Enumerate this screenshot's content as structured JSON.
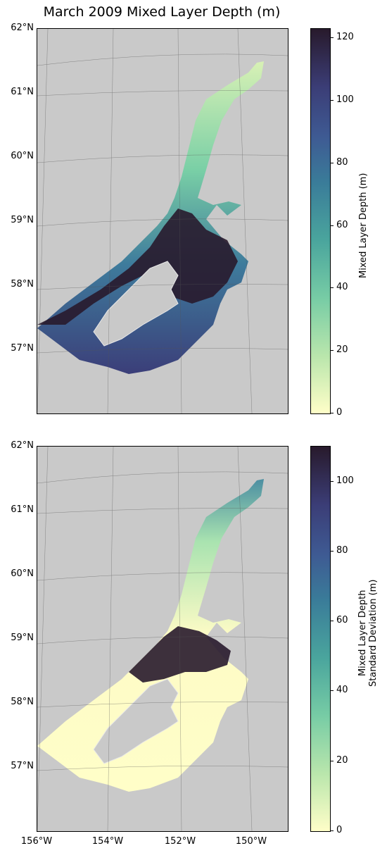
{
  "title": "March 2009 Mixed Layer Depth (m)",
  "lat_labels": [
    "62°N",
    "61°N",
    "60°N",
    "59°N",
    "58°N",
    "57°N"
  ],
  "lon_labels": [
    "156°W",
    "154°W",
    "152°W",
    "150°W"
  ],
  "panels": [
    {
      "colorbar": {
        "label_lines": [
          "Mixed Layer Depth (m)"
        ],
        "range": [
          0,
          123
        ],
        "ticks": [
          "0",
          "20",
          "40",
          "60",
          "80",
          "100",
          "120"
        ]
      }
    },
    {
      "colorbar": {
        "label_lines": [
          "Mixed Layer Depth",
          "Standard Deviation (m)"
        ],
        "range": [
          0,
          110
        ],
        "ticks": [
          "0",
          "20",
          "40",
          "60",
          "80",
          "100"
        ]
      }
    }
  ],
  "colormap": "deep",
  "colors": {
    "land": "#c9c9c9",
    "low": "#fffec8",
    "high": "#281a2c"
  }
}
